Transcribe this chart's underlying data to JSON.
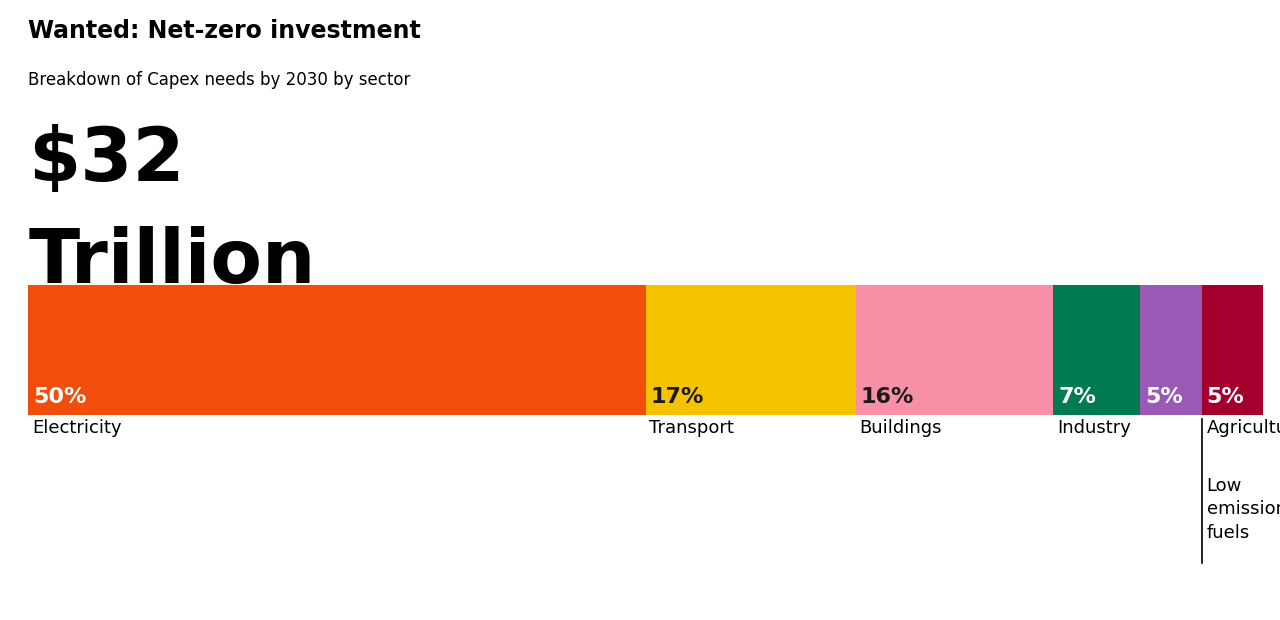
{
  "title": "Wanted: Net-zero investment",
  "subtitle": "Breakdown of Capex needs by 2030 by sector",
  "big_number": "$32",
  "big_number2": "Trillion",
  "segments": [
    {
      "label": "Electricity",
      "pct": 50,
      "color": "#F04E0A",
      "pct_color": "white"
    },
    {
      "label": "Transport",
      "pct": 17,
      "color": "#F5C300",
      "pct_color": "#1a1a1a"
    },
    {
      "label": "Buildings",
      "pct": 16,
      "color": "#F78FA7",
      "pct_color": "#1a1a1a"
    },
    {
      "label": "Industry",
      "pct": 7,
      "color": "#007A52",
      "pct_color": "white"
    },
    {
      "label": "Low\nemission\nfuels",
      "pct": 5,
      "color": "#9B59B6",
      "pct_color": "white"
    },
    {
      "label": "Agriculture",
      "pct": 5,
      "color": "#A3002E",
      "pct_color": "white"
    }
  ],
  "background_color": "#ffffff",
  "title_fontsize": 17,
  "subtitle_fontsize": 12,
  "big_number_fontsize": 54,
  "big_number2_fontsize": 54,
  "pct_fontsize": 16,
  "label_fontsize": 13
}
